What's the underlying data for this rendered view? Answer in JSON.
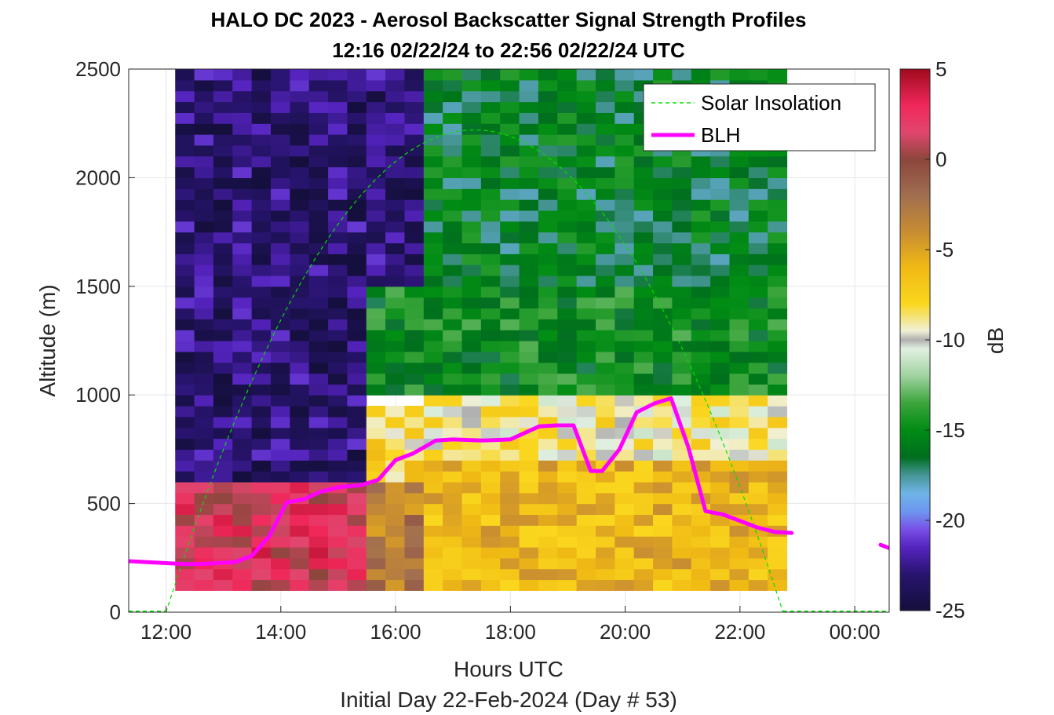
{
  "chart_data": {
    "type": "heatmap",
    "title": "HALO DC 2023 - Aerosol Backscatter Signal Strength Profiles",
    "subtitle": "12:16 02/22/24 to 22:56 02/22/24  UTC",
    "xlabel": "Hours UTC",
    "xlabel2": "Initial Day 22-Feb-2024 (Day # 53)",
    "ylabel": "Altitude (m)",
    "xlim": [
      11.35,
      24.6
    ],
    "ylim": [
      0,
      2500
    ],
    "x_ticks": [
      12,
      14,
      16,
      18,
      20,
      22,
      24
    ],
    "x_tick_labels": [
      "12:00",
      "14:00",
      "16:00",
      "18:00",
      "20:00",
      "22:00",
      "00:00"
    ],
    "y_ticks": [
      0,
      500,
      1000,
      1500,
      2000,
      2500
    ],
    "y_tick_labels": [
      "0",
      "500",
      "1000",
      "1500",
      "2000",
      "2500"
    ],
    "grid": true,
    "colorbar": {
      "label": "dB",
      "range": [
        -25,
        5
      ],
      "ticks": [
        5,
        0,
        -5,
        -10,
        -15,
        -20,
        -25
      ],
      "tick_labels": [
        "5",
        "0",
        "-5",
        "-10",
        "-15",
        "-20",
        "-25"
      ]
    },
    "legend": {
      "placement": "top-right",
      "entries": [
        {
          "name": "Solar Insolation",
          "color": "#00e000",
          "style": "dashed"
        },
        {
          "name": "BLH",
          "color": "#ff00ff",
          "style": "solid"
        }
      ]
    },
    "heatmap": {
      "x_start": 12.16,
      "x_end": 22.93,
      "x_step": 0.333,
      "y_start": 100,
      "y_end": 2500,
      "y_step": 50,
      "regions": [
        {
          "x": [
            12.16,
            15.33
          ],
          "y": [
            100,
            580
          ],
          "value": 2
        },
        {
          "x": [
            15.33,
            16.35
          ],
          "y": [
            100,
            580
          ],
          "value": -3
        },
        {
          "x": [
            16.35,
            22.93
          ],
          "y": [
            100,
            700
          ],
          "value": -6
        },
        {
          "x": [
            15.33,
            16.35
          ],
          "y": [
            580,
            950
          ],
          "value": -8
        },
        {
          "x": [
            16.35,
            22.93
          ],
          "y": [
            700,
            1000
          ],
          "value": -9
        },
        {
          "x": [
            15.33,
            22.93
          ],
          "y": [
            1000,
            1500
          ],
          "value": -15
        },
        {
          "x": [
            12.16,
            15.33
          ],
          "y": [
            580,
            2500
          ],
          "value": -23
        },
        {
          "x": [
            15.33,
            16.35
          ],
          "y": [
            1500,
            2500
          ],
          "value": -23
        },
        {
          "x": [
            16.35,
            22.93
          ],
          "y": [
            1500,
            2500
          ],
          "value": -16
        }
      ]
    },
    "series": [
      {
        "name": "BLH",
        "color": "#ff00ff",
        "x": [
          11.35,
          12.3,
          12.6,
          13.2,
          13.5,
          13.8,
          14.1,
          14.4,
          14.7,
          15.0,
          15.4,
          15.7,
          16.0,
          16.3,
          16.7,
          17.0,
          17.5,
          18.0,
          18.5,
          18.8,
          19.1,
          19.4,
          19.6,
          19.9,
          20.2,
          20.5,
          20.8,
          21.1,
          21.4,
          21.7,
          22.0,
          22.3,
          22.6,
          22.9,
          23.1
        ],
        "y": [
          235,
          222,
          222,
          230,
          260,
          350,
          505,
          520,
          555,
          575,
          585,
          610,
          700,
          730,
          790,
          795,
          790,
          795,
          855,
          860,
          860,
          650,
          650,
          750,
          920,
          960,
          985,
          760,
          465,
          450,
          420,
          390,
          370,
          365,
          null
        ]
      },
      {
        "name": "BLH (next day)",
        "color": "#ff00ff",
        "x": [
          24.45,
          24.6
        ],
        "y": [
          310,
          295
        ]
      },
      {
        "name": "Solar Insolation",
        "color": "#00e000",
        "x_start": 12.0,
        "x_end": 22.75,
        "peak_x": 17.375,
        "peak_y": 2220
      }
    ]
  }
}
